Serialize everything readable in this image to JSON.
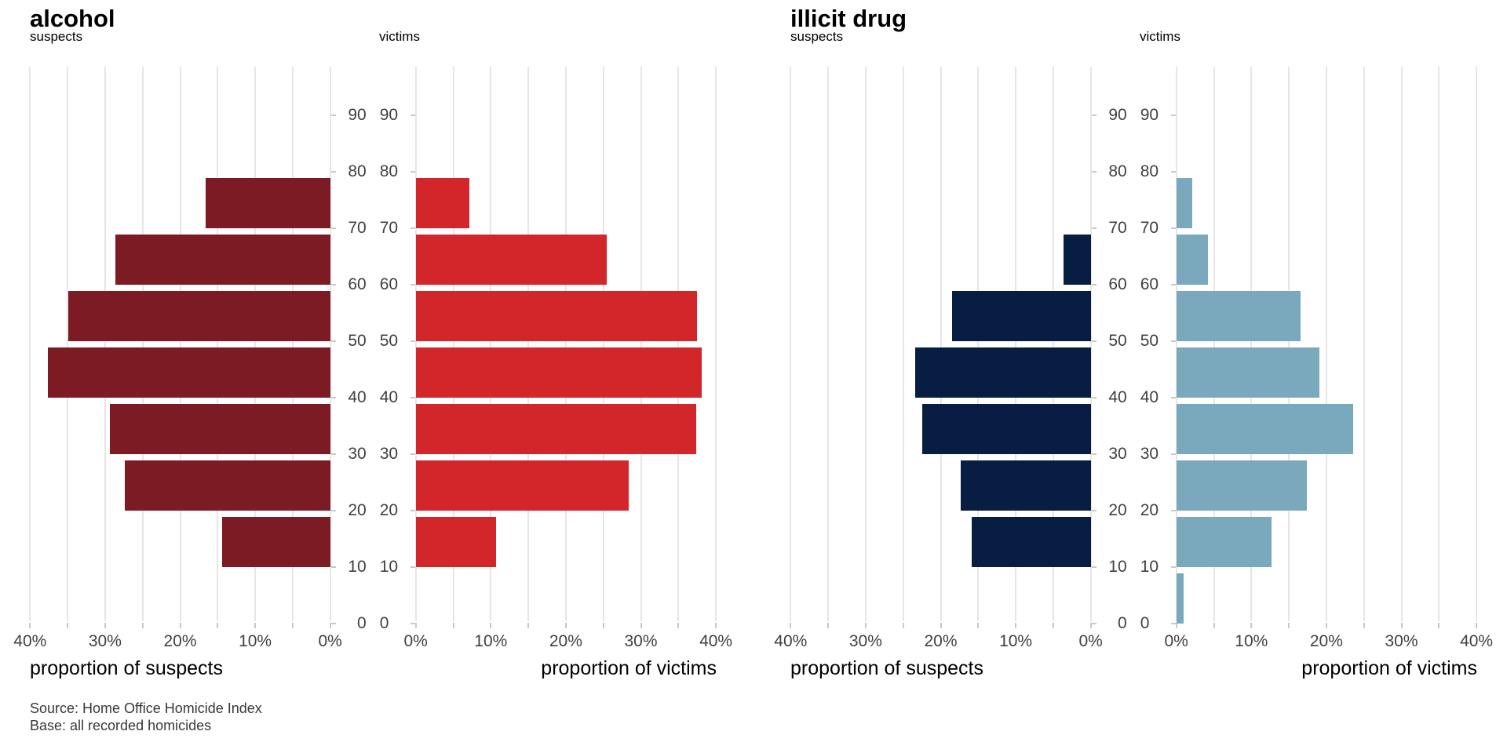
{
  "page": {
    "background": "#ffffff"
  },
  "footer": {
    "source": "Source: Home Office Homicide Index",
    "base": "Base: all recorded homicides"
  },
  "chart_data": [
    {
      "type": "bar",
      "variant": "population-pyramid",
      "title": "alcohol",
      "age_bands": [
        "0-10",
        "10-20",
        "20-30",
        "30-40",
        "40-50",
        "50-60",
        "60-70",
        "70-80",
        "80-90"
      ],
      "age_axis": {
        "min": 0,
        "max": 90,
        "ticks": [
          0,
          10,
          20,
          30,
          40,
          50,
          60,
          70,
          80,
          90
        ]
      },
      "pct_axis": {
        "min": 0,
        "max": 40,
        "grid_step": 5,
        "labeled_ticks": [
          0,
          10,
          20,
          30,
          40
        ],
        "unit": "%"
      },
      "grid": true,
      "series": [
        {
          "name": "suspects",
          "side": "left",
          "xlabel": "proportion of suspects",
          "color": "#7D1B25",
          "values": [
            0,
            14.4,
            27.4,
            29.4,
            37.6,
            34.9,
            28.6,
            16.6,
            0
          ]
        },
        {
          "name": "victims",
          "side": "right",
          "xlabel": "proportion of victims",
          "color": "#D3262B",
          "values": [
            0,
            10.7,
            28.4,
            37.4,
            38.1,
            37.5,
            25.4,
            7.1,
            0
          ]
        }
      ]
    },
    {
      "type": "bar",
      "variant": "population-pyramid",
      "title": "illicit drug",
      "age_bands": [
        "0-10",
        "10-20",
        "20-30",
        "30-40",
        "40-50",
        "50-60",
        "60-70",
        "70-80",
        "80-90"
      ],
      "age_axis": {
        "min": 0,
        "max": 90,
        "ticks": [
          0,
          10,
          20,
          30,
          40,
          50,
          60,
          70,
          80,
          90
        ]
      },
      "pct_axis": {
        "min": 0,
        "max": 40,
        "grid_step": 5,
        "labeled_ticks": [
          0,
          10,
          20,
          30,
          40
        ],
        "unit": "%"
      },
      "grid": true,
      "series": [
        {
          "name": "suspects",
          "side": "left",
          "xlabel": "proportion of suspects",
          "color": "#071D41",
          "values": [
            0,
            15.9,
            17.3,
            22.5,
            23.4,
            18.5,
            3.6,
            0,
            0
          ]
        },
        {
          "name": "victims",
          "side": "right",
          "xlabel": "proportion of victims",
          "color": "#7AA9BE",
          "values": [
            1.0,
            12.7,
            17.4,
            23.6,
            19.1,
            16.6,
            4.2,
            2.1,
            0
          ]
        }
      ]
    }
  ]
}
